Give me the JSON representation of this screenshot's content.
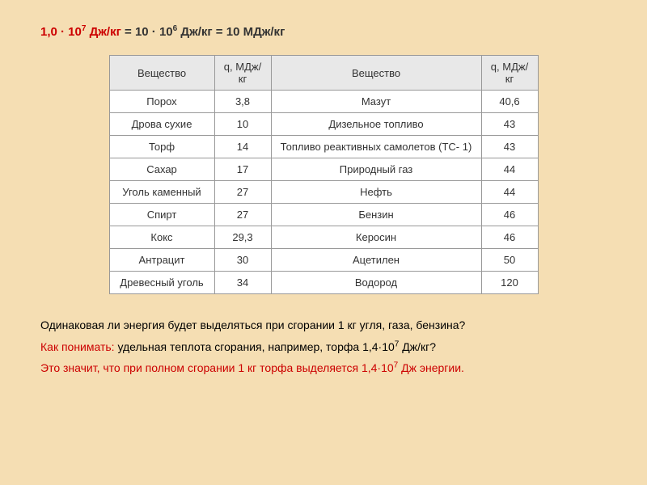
{
  "formula": {
    "prefix_red": "1,0 · 10",
    "sup1": "7",
    "mid1": " Дж/кг ",
    "eq1": "= 10 · 10",
    "sup2": "6",
    "mid2": " Дж/кг = 10 МДж/кг"
  },
  "table": {
    "headers": {
      "h1": "Вещество",
      "h2": "q, МДж/кг",
      "h3": "Вещество",
      "h4": "q, МДж/кг"
    },
    "rows": [
      {
        "c1": "Порох",
        "c2": "3,8",
        "c3": "Мазут",
        "c4": "40,6"
      },
      {
        "c1": "Дрова сухие",
        "c2": "10",
        "c3": "Дизельное топливо",
        "c4": "43"
      },
      {
        "c1": "Торф",
        "c2": "14",
        "c3": "Топливо реактивных самолетов (ТС- 1)",
        "c4": "43"
      },
      {
        "c1": "Сахар",
        "c2": "17",
        "c3": "Природный газ",
        "c4": "44"
      },
      {
        "c1": "Уголь каменный",
        "c2": "27",
        "c3": "Нефть",
        "c4": "44"
      },
      {
        "c1": "Спирт",
        "c2": "27",
        "c3": "Бензин",
        "c4": "46"
      },
      {
        "c1": "Кокс",
        "c2": "29,3",
        "c3": "Керосин",
        "c4": "46"
      },
      {
        "c1": "Антрацит",
        "c2": "30",
        "c3": "Ацетилен",
        "c4": "50"
      },
      {
        "c1": "Древесный уголь",
        "c2": "34",
        "c3": "Водород",
        "c4": "120"
      }
    ]
  },
  "q1": "Одинаковая ли энергия будет выделяться при сгорании 1 кг угля, газа, бензина?",
  "q2_red": "Как понимать:",
  "q2_black_a": " удельная теплота сгорания, например, торфа 1,4·10",
  "q2_sup": "7",
  "q2_black_b": " Дж/кг?",
  "q3_red": "Это значит, что при полном сгорании 1 кг торфа выделяется 1,4·10",
  "q3_sup": "7",
  "q3_red_b": " Дж энергии."
}
